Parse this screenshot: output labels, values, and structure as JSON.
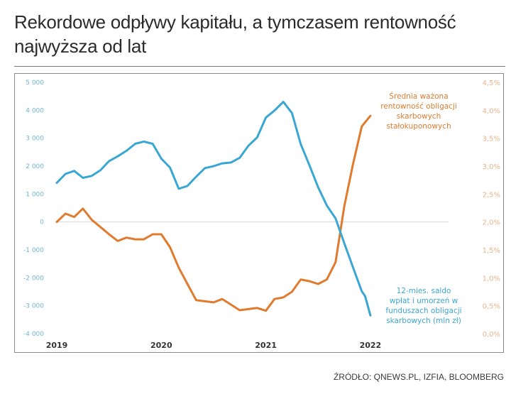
{
  "title": "Rekordowe odpływy kapitału, a tymczasem rentowność najwyższa od lat",
  "title_lines": [
    "Rekordowe odpływy kapitału, a tymczasem rentowność",
    "najwyższa od lat"
  ],
  "source": "ŹRÓDŁO: QNEWS.PL, IZFIA, BLOOMBERG",
  "colors": {
    "blue": "#3aa7d3",
    "orange": "#e07b2e",
    "left_axis": "#6fb7d6",
    "right_axis": "#eab48a",
    "year_label": "#333333"
  },
  "chart_data": {
    "type": "line",
    "title": "Rekordowe odpływy kapitału, a tymczasem rentowność najwyższa od lat",
    "x_ticks": [
      "2019",
      "2020",
      "2021",
      "2022"
    ],
    "x_range": [
      2019.0,
      2022.25
    ],
    "left_axis": {
      "ylim": [
        -4000,
        5000
      ],
      "ticks": [
        5000,
        4000,
        3000,
        2000,
        1000,
        0,
        -1000,
        -2000,
        -3000,
        -4000
      ],
      "tick_labels": [
        "5 000",
        "4 000",
        "3 000",
        "2 000",
        "1 000",
        "0",
        "-1 000",
        "-2 000",
        "-3 000",
        "-4 000"
      ]
    },
    "right_axis": {
      "ylim": [
        0,
        4.5
      ],
      "ticks": [
        4.5,
        4.0,
        3.5,
        3.0,
        2.5,
        2.0,
        1.5,
        1.0,
        0.5,
        0.0
      ],
      "tick_labels": [
        "4,5%",
        "4,0%",
        "3,5%",
        "3,0%",
        "2,5%",
        "2,0%",
        "1,5%",
        "1,0%",
        "0,5%",
        "0,0%"
      ]
    },
    "zero_line": true,
    "series": [
      {
        "name": "12-mies. saldo wpłat i umorzeń w funduszach obligacji skarbowych (mln zł)",
        "label_lines": [
          "12-mies. saldo",
          "wpłat i umorzeń w",
          "funduszach obligacji",
          "skarbowych (mln zł)"
        ],
        "axis": "left",
        "x": [
          2019.0,
          2019.083,
          2019.167,
          2019.25,
          2019.333,
          2019.417,
          2019.5,
          2019.583,
          2019.667,
          2019.75,
          2019.833,
          2019.917,
          2020.0,
          2020.083,
          2020.167,
          2020.25,
          2020.333,
          2020.417,
          2020.5,
          2020.583,
          2020.667,
          2020.75,
          2020.833,
          2020.917,
          2021.0,
          2021.083,
          2021.167,
          2021.25,
          2021.333,
          2021.417,
          2021.5,
          2021.583,
          2021.667,
          2021.75,
          2021.833,
          2021.917,
          2021.95,
          2022.0
        ],
        "values": [
          1400,
          1720,
          1830,
          1580,
          1650,
          1850,
          2180,
          2350,
          2550,
          2800,
          2880,
          2800,
          2270,
          1950,
          1190,
          1290,
          1620,
          1930,
          2000,
          2100,
          2130,
          2300,
          2730,
          3030,
          3740,
          3990,
          4300,
          3900,
          2790,
          2030,
          1240,
          590,
          130,
          -760,
          -1620,
          -2480,
          -2660,
          -3350
        ]
      },
      {
        "name": "Średnia ważona rentowność obligacji skarbowych stałokuponowych",
        "label_lines": [
          "Średnia ważona",
          "rentowność obligacji",
          "skarbowych",
          "stałokuponowych"
        ],
        "axis": "right",
        "x": [
          2019.0,
          2019.083,
          2019.167,
          2019.25,
          2019.333,
          2019.417,
          2019.5,
          2019.583,
          2019.667,
          2019.75,
          2019.833,
          2019.917,
          2020.0,
          2020.083,
          2020.167,
          2020.25,
          2020.333,
          2020.417,
          2020.5,
          2020.583,
          2020.667,
          2020.75,
          2020.833,
          2020.917,
          2021.0,
          2021.083,
          2021.167,
          2021.25,
          2021.333,
          2021.417,
          2021.5,
          2021.583,
          2021.667,
          2021.75,
          2021.833,
          2021.917,
          2022.0
        ],
        "values": [
          2.0,
          2.15,
          2.09,
          2.24,
          2.04,
          1.91,
          1.78,
          1.66,
          1.72,
          1.69,
          1.69,
          1.78,
          1.78,
          1.55,
          1.18,
          0.89,
          0.6,
          0.58,
          0.56,
          0.62,
          0.52,
          0.42,
          0.44,
          0.46,
          0.41,
          0.62,
          0.65,
          0.75,
          0.97,
          0.94,
          0.89,
          0.97,
          1.28,
          2.28,
          3.03,
          3.71,
          3.9
        ]
      }
    ]
  }
}
